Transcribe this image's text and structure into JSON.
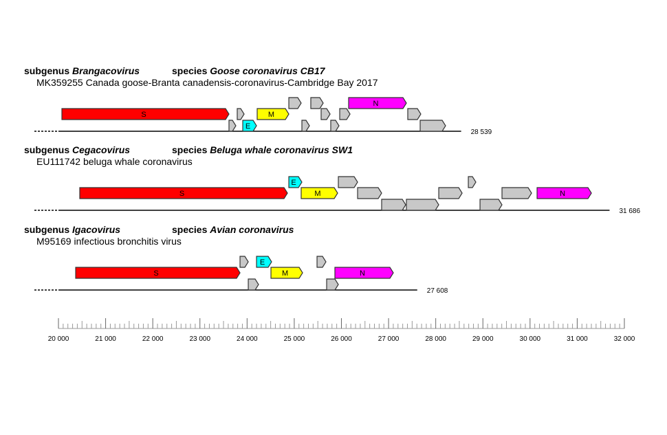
{
  "colors": {
    "S": "#ff0000",
    "E": "#00ffff",
    "M": "#ffff00",
    "N": "#ff00ff",
    "other": "#c8c8c8",
    "stroke": "#333333"
  },
  "axis": {
    "min": 20000,
    "max": 32000,
    "major_step": 1000,
    "mid_step": 500,
    "minor_step": 100,
    "labels": [
      "20 000",
      "21 000",
      "22 000",
      "23 000",
      "24 000",
      "25 000",
      "26 000",
      "27 000",
      "28 000",
      "29 000",
      "30 000",
      "31 000",
      "32 000"
    ]
  },
  "tracks": [
    {
      "subgenus_prefix": "subgenus",
      "subgenus": "Brangacovirus",
      "species_prefix": "species",
      "species": "Goose coronavirus CB17",
      "description": "MK359255 Canada goose-Branta canadensis-coronavirus-Cambridge Bay 2017",
      "length_label": "28 539",
      "length": 28539,
      "genes": [
        {
          "label": "S",
          "type": "S",
          "start": 20073,
          "end": 23616,
          "row": 1
        },
        {
          "label": "",
          "type": "other",
          "start": 23616,
          "end": 23762,
          "row": 2
        },
        {
          "label": "",
          "type": "other",
          "start": 23791,
          "end": 23937,
          "row": 1
        },
        {
          "label": "E",
          "type": "E",
          "start": 23908,
          "end": 24200,
          "row": 2
        },
        {
          "label": "M",
          "type": "M",
          "start": 24214,
          "end": 24885,
          "row": 1
        },
        {
          "label": "",
          "type": "other",
          "start": 24885,
          "end": 25147,
          "row": 0
        },
        {
          "label": "",
          "type": "other",
          "start": 25162,
          "end": 25322,
          "row": 2
        },
        {
          "label": "",
          "type": "other",
          "start": 25351,
          "end": 25614,
          "row": 0
        },
        {
          "label": "",
          "type": "other",
          "start": 25570,
          "end": 25760,
          "row": 1
        },
        {
          "label": "",
          "type": "other",
          "start": 25774,
          "end": 25949,
          "row": 2
        },
        {
          "label": "",
          "type": "other",
          "start": 25964,
          "end": 26183,
          "row": 1
        },
        {
          "label": "N",
          "type": "N",
          "start": 26153,
          "end": 27378,
          "row": 0
        },
        {
          "label": "",
          "type": "other",
          "start": 27407,
          "end": 27684,
          "row": 1
        },
        {
          "label": "",
          "type": "other",
          "start": 27670,
          "end": 28209,
          "row": 2
        }
      ]
    },
    {
      "subgenus_prefix": "subgenus",
      "subgenus": "Cegacovirus",
      "species_prefix": "species",
      "species": "Beluga whale coronavirus SW1",
      "description": "EU111742 beluga whale coronavirus",
      "length_label": "31 686",
      "length": 31686,
      "genes": [
        {
          "label": "S",
          "type": "S",
          "start": 20452,
          "end": 24856,
          "row": 1
        },
        {
          "label": "E",
          "type": "E",
          "start": 24885,
          "end": 25162,
          "row": 0
        },
        {
          "label": "M",
          "type": "M",
          "start": 25147,
          "end": 25920,
          "row": 1
        },
        {
          "label": "",
          "type": "other",
          "start": 25935,
          "end": 26343,
          "row": 0
        },
        {
          "label": "",
          "type": "other",
          "start": 26343,
          "end": 26853,
          "row": 1
        },
        {
          "label": "",
          "type": "other",
          "start": 26853,
          "end": 27364,
          "row": 2
        },
        {
          "label": "",
          "type": "other",
          "start": 27378,
          "end": 28064,
          "row": 2
        },
        {
          "label": "",
          "type": "other",
          "start": 28064,
          "end": 28560,
          "row": 1
        },
        {
          "label": "",
          "type": "other",
          "start": 28691,
          "end": 28851,
          "row": 0
        },
        {
          "label": "",
          "type": "other",
          "start": 28939,
          "end": 29405,
          "row": 2
        },
        {
          "label": "",
          "type": "other",
          "start": 29405,
          "end": 30032,
          "row": 1
        },
        {
          "label": "N",
          "type": "N",
          "start": 30149,
          "end": 31301,
          "row": 1
        }
      ]
    },
    {
      "subgenus_prefix": "subgenus",
      "subgenus": "Igacovirus",
      "species_prefix": "species",
      "species": "Avian coronavirus",
      "description": "M95169 infectious bronchitis virus",
      "length_label": "27 608",
      "length": 27608,
      "genes": [
        {
          "label": "S",
          "type": "S",
          "start": 20365,
          "end": 23850,
          "row": 1
        },
        {
          "label": "",
          "type": "other",
          "start": 23850,
          "end": 24025,
          "row": 0
        },
        {
          "label": "",
          "type": "other",
          "start": 24025,
          "end": 24243,
          "row": 2
        },
        {
          "label": "E",
          "type": "E",
          "start": 24200,
          "end": 24520,
          "row": 0
        },
        {
          "label": "M",
          "type": "M",
          "start": 24506,
          "end": 25177,
          "row": 1
        },
        {
          "label": "",
          "type": "other",
          "start": 25483,
          "end": 25672,
          "row": 0
        },
        {
          "label": "",
          "type": "other",
          "start": 25687,
          "end": 25935,
          "row": 2
        },
        {
          "label": "N",
          "type": "N",
          "start": 25862,
          "end": 27101,
          "row": 1
        }
      ]
    }
  ]
}
